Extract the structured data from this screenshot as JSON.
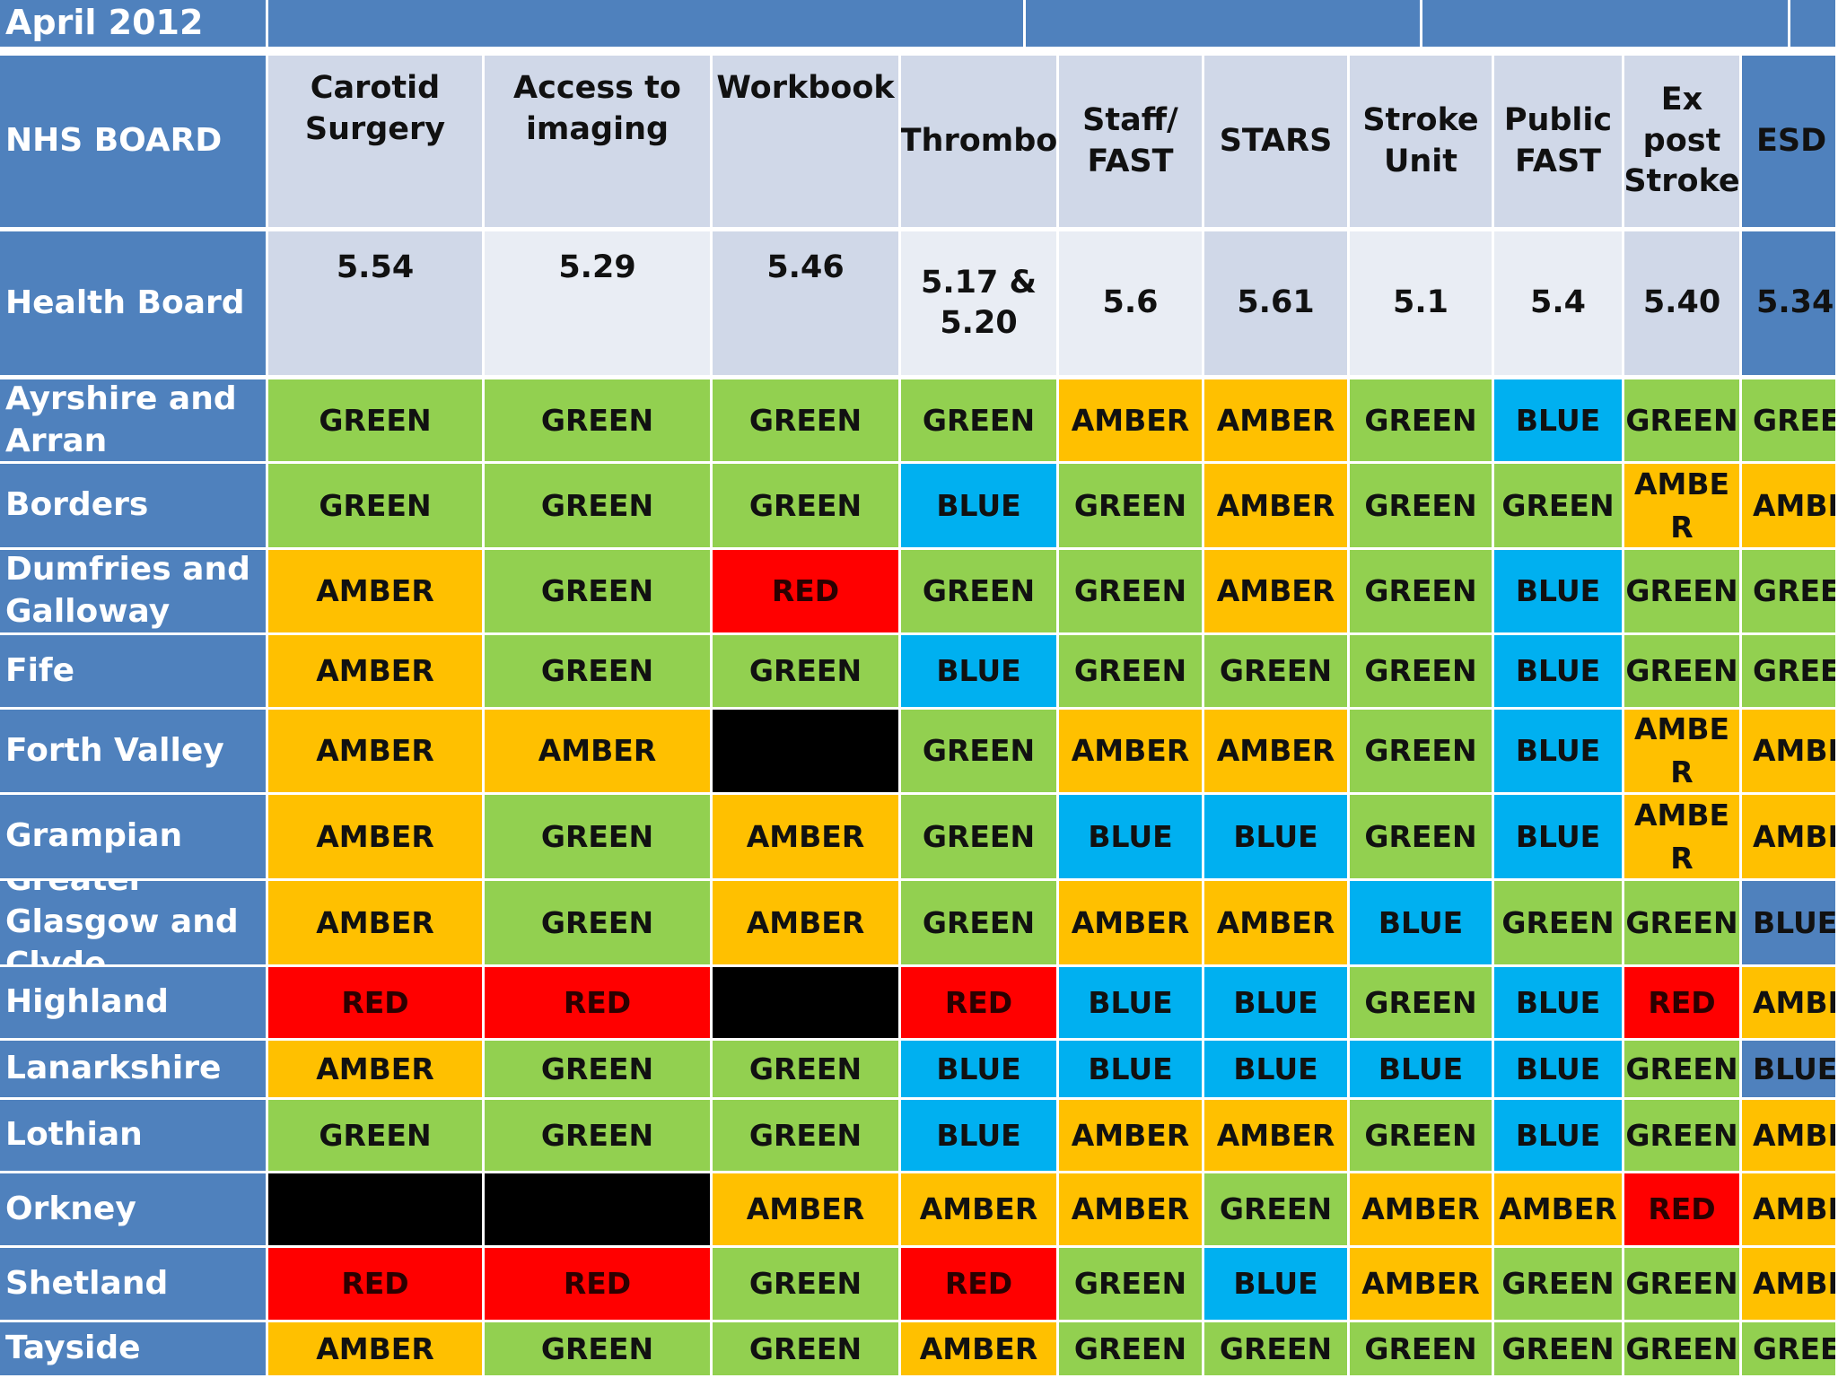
{
  "banner": {
    "title": "April 2012"
  },
  "table": {
    "corner_header": "NHS BOARD",
    "code_row_label": "Health Board",
    "columns": [
      {
        "name": "Carotid\nSurgery",
        "code": "5.54"
      },
      {
        "name": "Access to\nimaging",
        "code": "5.29"
      },
      {
        "name": "Workbook",
        "code": "5.46"
      },
      {
        "name": "Thrombo",
        "code": "5.17 &\n5.20"
      },
      {
        "name": "Staff/\nFAST",
        "code": "5.6"
      },
      {
        "name": "STARS",
        "code": "5.61"
      },
      {
        "name": "Stroke\nUnit",
        "code": "5.1"
      },
      {
        "name": "Public\nFAST",
        "code": "5.4"
      },
      {
        "name": "Ex post\nStroke",
        "code": "5.40"
      },
      {
        "name": "ESD",
        "code": "5.34"
      }
    ],
    "rows": [
      {
        "board": "Ayrshire and Arran",
        "values": [
          "GREEN",
          "GREEN",
          "GREEN",
          "GREEN",
          "AMBER",
          "AMBER",
          "GREEN",
          "BLUE",
          "GREEN",
          "GREEN"
        ]
      },
      {
        "board": "Borders",
        "values": [
          "GREEN",
          "GREEN",
          "GREEN",
          "BLUE",
          "GREEN",
          "AMBER",
          "GREEN",
          "GREEN",
          "AMBE\nR",
          "AMBER"
        ]
      },
      {
        "board": "Dumfries and Galloway",
        "values": [
          "AMBER",
          "GREEN",
          "RED",
          "GREEN",
          "GREEN",
          "AMBER",
          "GREEN",
          "BLUE",
          "GREEN",
          "GREEN"
        ]
      },
      {
        "board": "Fife",
        "values": [
          "AMBER",
          "GREEN",
          "GREEN",
          "BLUE",
          "GREEN",
          "GREEN",
          "GREEN",
          "BLUE",
          "GREEN",
          "GREEN"
        ]
      },
      {
        "board": "Forth Valley",
        "values": [
          "AMBER",
          "AMBER",
          "",
          "GREEN",
          "AMBER",
          "AMBER",
          "GREEN",
          "BLUE",
          "AMBE\nR",
          "AMBER"
        ]
      },
      {
        "board": "Grampian",
        "values": [
          "AMBER",
          "GREEN",
          "AMBER",
          "GREEN",
          "BLUE",
          "BLUE",
          "GREEN",
          "BLUE",
          "AMBE\nR",
          "AMBER"
        ]
      },
      {
        "board": "Greater Glasgow and Clyde",
        "values": [
          "AMBER",
          "GREEN",
          "AMBER",
          "GREEN",
          "AMBER",
          "AMBER",
          "BLUE",
          "GREEN",
          "GREEN",
          "BLUE"
        ]
      },
      {
        "board": "Highland",
        "values": [
          "RED",
          "RED",
          "",
          "RED",
          "BLUE",
          "BLUE",
          "GREEN",
          "BLUE",
          "RED",
          "AMBER"
        ]
      },
      {
        "board": "Lanarkshire",
        "values": [
          "AMBER",
          "GREEN",
          "GREEN",
          "BLUE",
          "BLUE",
          "BLUE",
          "BLUE",
          "BLUE",
          "GREEN",
          "BLUE"
        ]
      },
      {
        "board": "Lothian",
        "values": [
          "GREEN",
          "GREEN",
          "GREEN",
          "BLUE",
          "AMBER",
          "AMBER",
          "GREEN",
          "BLUE",
          "GREEN",
          "AMBER"
        ]
      },
      {
        "board": "Orkney",
        "values": [
          "",
          "",
          "AMBER",
          "AMBER",
          "AMBER",
          "GREEN",
          "AMBER",
          "AMBER",
          "RED",
          "AMBER"
        ]
      },
      {
        "board": "Shetland",
        "values": [
          "RED",
          "RED",
          "GREEN",
          "RED",
          "GREEN",
          "BLUE",
          "AMBER",
          "GREEN",
          "GREEN",
          "AMBER"
        ]
      },
      {
        "board": "Tayside",
        "values": [
          "AMBER",
          "GREEN",
          "GREEN",
          "AMBER",
          "GREEN",
          "GREEN",
          "GREEN",
          "GREEN",
          "GREEN",
          "GREEN"
        ]
      }
    ],
    "blackout_cells": [
      [
        4,
        2
      ],
      [
        7,
        2
      ],
      [
        10,
        0
      ],
      [
        10,
        1
      ]
    ]
  },
  "colors": {
    "GREEN": "#92d050",
    "AMBER": "#ffc000",
    "RED": "#ff0000",
    "BLUE": "#00b0f0",
    "BLACK": "#000000",
    "BLUE_DARK": "#4f81bd",
    "header_blue": "#4f81bd",
    "header_light": "#d0d8e8",
    "header_lighter": "#e9edf4",
    "grid_line": "#ffffff"
  }
}
